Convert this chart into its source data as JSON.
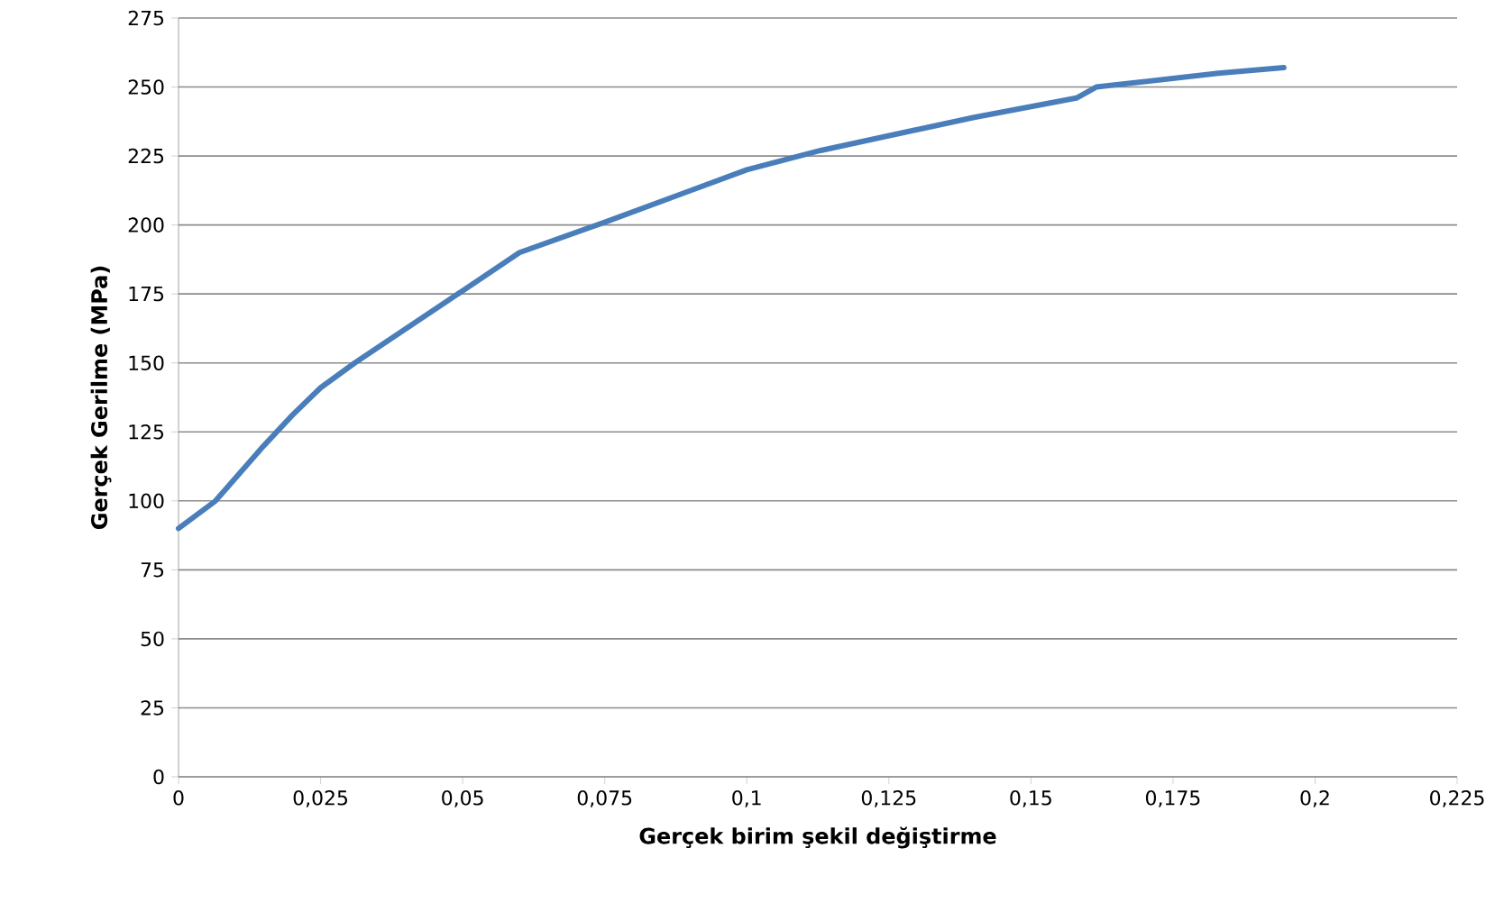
{
  "chart_data": {
    "type": "line",
    "xlabel": "Gerçek birim şekil değiştirme",
    "ylabel": "Gerçek Gerilme (MPa)",
    "x": [
      0,
      0.0065,
      0.015,
      0.02,
      0.025,
      0.031,
      0.047,
      0.06,
      0.075,
      0.1,
      0.113,
      0.14,
      0.158,
      0.1615,
      0.183,
      0.1945
    ],
    "series": [
      {
        "color": "#4a7ebb",
        "values": [
          90,
          100,
          120,
          131,
          141,
          150,
          172,
          190,
          201,
          220,
          227,
          239,
          246,
          250,
          255,
          257
        ]
      }
    ],
    "xlim": [
      0,
      0.225
    ],
    "xticks": [
      0,
      {
        "value": 0.025,
        "label": "0,025"
      },
      {
        "value": 0.05,
        "label": "0,05"
      },
      {
        "value": 0.075,
        "label": "0,075"
      },
      {
        "value": 0.1,
        "label": "0,1"
      },
      {
        "value": 0.125,
        "label": "0,125"
      },
      {
        "value": 0.15,
        "label": "0,15"
      },
      {
        "value": 0.175,
        "label": "0,175"
      },
      {
        "value": 0.2,
        "label": "0,2"
      },
      {
        "value": 0.225,
        "label": "0,225"
      }
    ],
    "ylim": [
      0,
      275
    ],
    "yticks": [
      0,
      25,
      50,
      75,
      100,
      125,
      150,
      175,
      200,
      225,
      250,
      275
    ],
    "grid": "y",
    "marker": "none",
    "line_style": "solid"
  }
}
